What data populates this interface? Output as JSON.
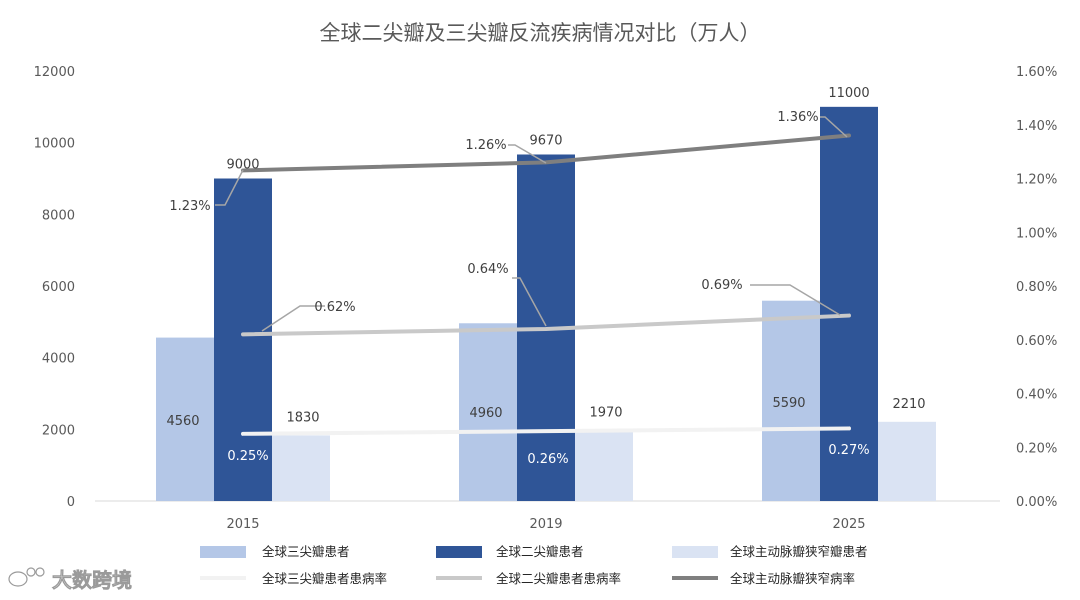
{
  "chart_data": {
    "type": "bar",
    "title": "全球二尖瓣及三尖瓣反流疾病情况对比（万人）",
    "categories": [
      "2015",
      "2019",
      "2025"
    ],
    "y_left": {
      "min": 0,
      "max": 12000,
      "ticks": [
        "0",
        "2000",
        "4000",
        "6000",
        "8000",
        "10000",
        "12000"
      ]
    },
    "y_right": {
      "min": 0,
      "max": 1.6,
      "ticks": [
        "0.00%",
        "0.20%",
        "0.40%",
        "0.60%",
        "0.80%",
        "1.00%",
        "1.20%",
        "1.40%",
        "1.60%"
      ]
    },
    "bar_series": [
      {
        "name": "全球三尖瓣患者",
        "color": "#b4c7e7",
        "values": [
          4560,
          4960,
          5590
        ],
        "labels": [
          "4560",
          "4960",
          "5590"
        ]
      },
      {
        "name": "全球二尖瓣患者",
        "color": "#2f5597",
        "values": [
          9000,
          9670,
          11000
        ],
        "labels": [
          "9000",
          "9670",
          "11000"
        ]
      },
      {
        "name": "全球主动脉瓣狭窄瓣患者",
        "color": "#dae3f3",
        "values": [
          1830,
          1970,
          2210
        ],
        "labels": [
          "1830",
          "1970",
          "2210"
        ]
      }
    ],
    "line_series": [
      {
        "name": "全球三尖瓣患者患病率",
        "color": "#f2f2f2",
        "values": [
          0.25,
          0.26,
          0.27
        ],
        "labels": [
          "0.25%",
          "0.26%",
          "0.27%"
        ]
      },
      {
        "name": "全球二尖瓣患者患病率",
        "color": "#c9c9c9",
        "values": [
          0.62,
          0.64,
          0.69
        ],
        "labels": [
          "0.62%",
          "0.64%",
          "0.69%"
        ]
      },
      {
        "name": "全球主动脉瓣狭窄病率",
        "color": "#7f7f7f",
        "values": [
          1.23,
          1.26,
          1.36
        ],
        "labels": [
          "1.23%",
          "1.26%",
          "1.36%"
        ]
      }
    ],
    "grid": false,
    "legend_position": "bottom"
  },
  "watermark": {
    "text": "大数跨境",
    "icon": "weibo-logo-icon"
  }
}
